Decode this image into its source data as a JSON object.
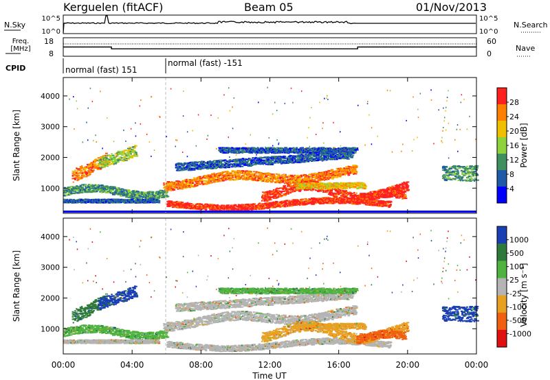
{
  "header": {
    "station": "Kerguelen (fitACF)",
    "beam": "Beam 05",
    "date": "01/Nov/2013"
  },
  "side_labels": {
    "nsky": "N.Sky",
    "freq_line1": "Freq.",
    "freq_line2": "[MHz]",
    "cpid": "CPID",
    "nsearch": "N.Search",
    "nave": "Nave"
  },
  "small_axes": {
    "noise_ticks": [
      "10^5",
      "10^0"
    ],
    "freq_ticks": [
      "18",
      "8"
    ],
    "nave_ticks": [
      "60",
      "0"
    ]
  },
  "cpid_labels": [
    "normal (fast) 151",
    "normal (fast) -151"
  ],
  "x_axis": {
    "label": "Time UT",
    "ticks": [
      "00:00",
      "04:00",
      "08:00",
      "12:00",
      "16:00",
      "20:00",
      "00:00"
    ]
  },
  "colors": {
    "power_scale": [
      "#0000ff",
      "#1e5aa8",
      "#3f8f5f",
      "#8ed23c",
      "#f0c000",
      "#ff8000",
      "#ff2020"
    ],
    "velocity_scale": [
      "#1a3fb4",
      "#2e7a3a",
      "#4fb33f",
      "#b4b4b4",
      "#e8a020",
      "#f06010",
      "#e01010"
    ]
  },
  "chart_data": [
    {
      "type": "line",
      "name": "noise-sky",
      "title": "",
      "xlabel": "",
      "ylabel": "N.Sky",
      "xlim": [
        0,
        24
      ],
      "log_scale": true,
      "note_series": [
        {
          "name": "N.Sky",
          "x": [
            0,
            0.1,
            2.5,
            2.6,
            13,
            13.2,
            17,
            24
          ],
          "y_level": "mid-high"
        }
      ]
    },
    {
      "type": "line",
      "name": "frequency",
      "ylabel": "Freq. [MHz]",
      "xlim": [
        0,
        24
      ],
      "ylim": [
        8,
        18
      ],
      "series": [
        {
          "name": "Freq.",
          "x": [
            0,
            2.8,
            2.8,
            17.1,
            17.1,
            24
          ],
          "y": [
            13,
            13,
            12,
            12,
            13,
            13
          ]
        }
      ],
      "right_axis": {
        "ylabel": "Nave",
        "ylim": [
          0,
          60
        ]
      }
    },
    {
      "type": "heatmap",
      "name": "power",
      "title": "",
      "xlabel": "Time UT",
      "ylabel": "Slant Range [km]",
      "xlim": [
        0,
        24
      ],
      "ylim": [
        180,
        4600
      ],
      "yticks": [
        "1000",
        "2000",
        "3000",
        "4000"
      ],
      "colorbar": {
        "label": "Power [dB]",
        "ticks": [
          "4",
          "8",
          "12",
          "16",
          "20",
          "24",
          "28"
        ]
      }
    },
    {
      "type": "heatmap",
      "name": "velocity",
      "xlabel": "Time UT",
      "ylabel": "Slant Range [km]",
      "xlim": [
        0,
        24
      ],
      "ylim": [
        180,
        4600
      ],
      "yticks": [
        "1000",
        "2000",
        "3000",
        "4000"
      ],
      "colorbar": {
        "label": "Velocity [m s⁻¹]",
        "ticks": [
          "1000",
          "500",
          "100",
          "25",
          "-25",
          "-100",
          "-500",
          "-1000"
        ]
      }
    }
  ]
}
